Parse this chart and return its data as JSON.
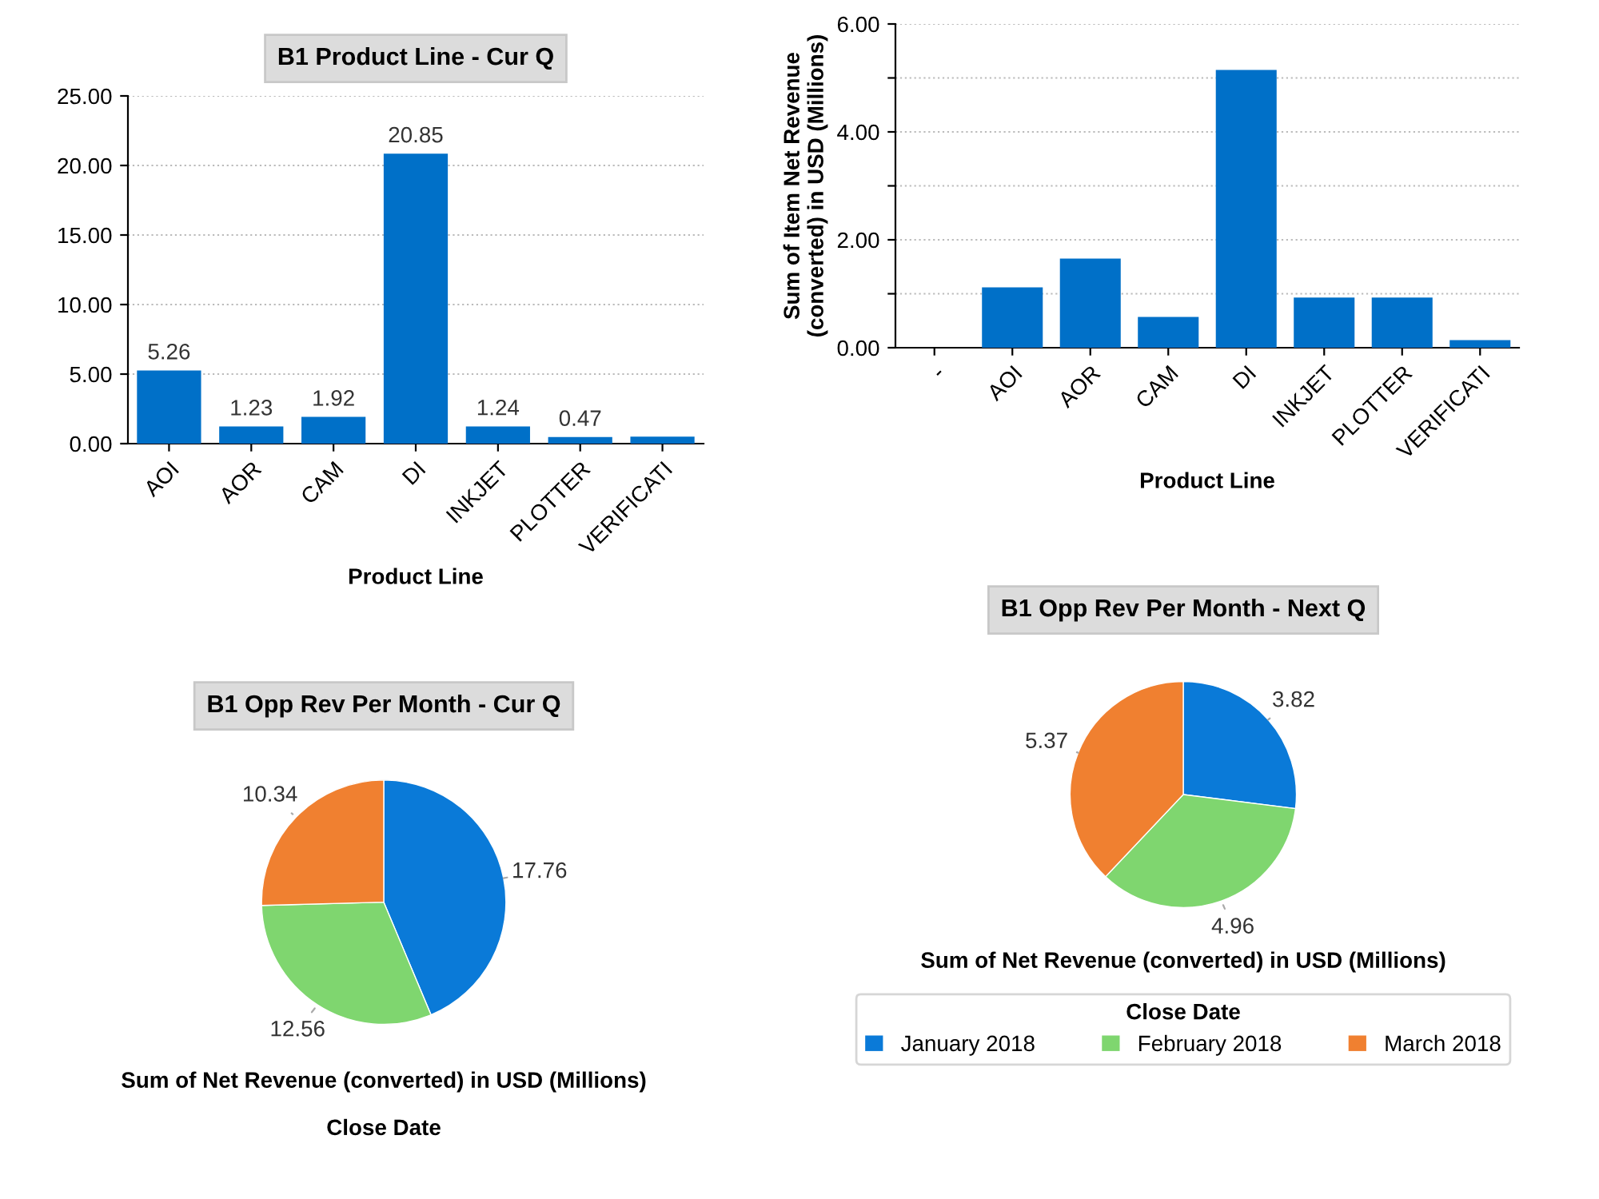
{
  "chart_data": [
    {
      "type": "bar",
      "title": "B1 Product Line - Cur Q",
      "xlabel": "Product Line",
      "categories": [
        "AOI",
        "AOR",
        "CAM",
        "DI",
        "INKJET",
        "PLOTTER",
        "VERIFICATI"
      ],
      "values": [
        5.26,
        1.23,
        1.92,
        20.85,
        1.24,
        0.47,
        0.5
      ],
      "value_labels": [
        "5.26",
        "1.23",
        "1.92",
        "20.85",
        "1.24",
        "0.47",
        null
      ],
      "color": "#0070c8",
      "ylim": [
        0,
        25
      ],
      "yticks": [
        {
          "value": 0,
          "label": "0.00"
        },
        {
          "value": 5,
          "label": "5.00"
        },
        {
          "value": 10,
          "label": "10.00"
        },
        {
          "value": 15,
          "label": "15.00"
        },
        {
          "value": 20,
          "label": "20.00"
        },
        {
          "value": 25,
          "label": "25.00"
        }
      ],
      "grid": "y"
    },
    {
      "type": "bar",
      "xlabel": "Product Line",
      "ylabel": "Sum of Item Net Revenue\n(converted) in USD (Millions)",
      "categories": [
        "-",
        "AOI",
        "AOR",
        "CAM",
        "DI",
        "INKJET",
        "PLOTTER",
        "VERIFICATI"
      ],
      "values": [
        null,
        1.12,
        1.65,
        0.57,
        5.15,
        0.93,
        0.93,
        0.14
      ],
      "color": "#0070c8",
      "ylim": [
        0,
        6
      ],
      "yticks": [
        {
          "value": 0,
          "label": "0.00"
        },
        {
          "value": 1,
          "label": null
        },
        {
          "value": 2,
          "label": "2.00"
        },
        {
          "value": 3,
          "label": null
        },
        {
          "value": 4,
          "label": "4.00"
        },
        {
          "value": 5,
          "label": null
        },
        {
          "value": 6,
          "label": "6.00"
        }
      ],
      "grid": "y"
    },
    {
      "type": "pie",
      "title": "B1 Opp Rev Per Month - Cur Q",
      "xlabel": "Sum of Net Revenue (converted) in USD (Millions)",
      "legend_title": "Close Date",
      "categories": [
        null,
        null,
        null
      ],
      "values": [
        17.76,
        12.56,
        10.34
      ],
      "colors": [
        "#0a7ad8",
        "#7fd66f",
        "#f08030"
      ],
      "data_labels": true
    },
    {
      "type": "pie",
      "title": "B1 Opp Rev Per Month - Next Q",
      "xlabel": "Sum of Net Revenue (converted) in USD (Millions)",
      "legend_title": "Close Date",
      "categories": [
        "January 2018",
        "February 2018",
        "March 2018"
      ],
      "values": [
        3.82,
        4.96,
        5.37
      ],
      "colors": [
        "#0a7ad8",
        "#7fd66f",
        "#f08030"
      ],
      "data_labels": true,
      "legend": "bottom"
    }
  ]
}
